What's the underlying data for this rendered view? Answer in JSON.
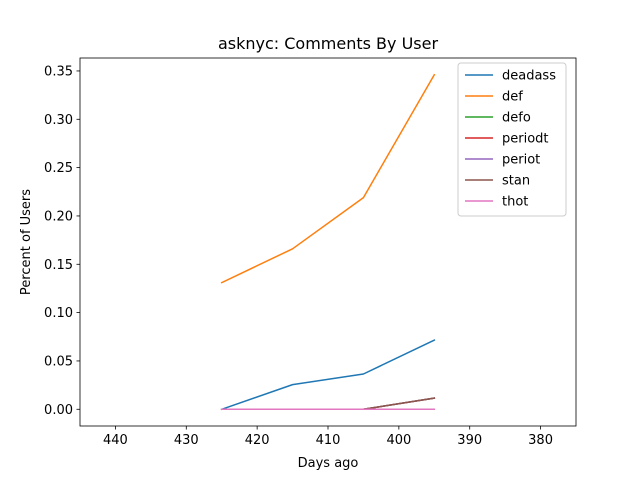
{
  "chart_data": {
    "type": "line",
    "title": "asknyc: Comments By User",
    "xlabel": "Days ago",
    "ylabel": "Percent of Users",
    "x_axis_inverted": true,
    "xlim": [
      445,
      375
    ],
    "ylim": [
      -0.0173,
      0.3634
    ],
    "xticks": [
      440,
      430,
      420,
      410,
      400,
      390,
      380
    ],
    "yticks": [
      0.0,
      0.05,
      0.1,
      0.15,
      0.2,
      0.25,
      0.3,
      0.35
    ],
    "ytick_labels": [
      "0.00",
      "0.05",
      "0.10",
      "0.15",
      "0.20",
      "0.25",
      "0.30",
      "0.35"
    ],
    "grid": false,
    "legend_position": "top-right",
    "x": [
      425,
      415,
      405,
      395
    ],
    "series": [
      {
        "name": "deadass",
        "color": "#1f77b4",
        "values": [
          0.0,
          0.0255,
          0.0365,
          0.0715
        ]
      },
      {
        "name": "def",
        "color": "#ff7f0e",
        "values": [
          0.131,
          0.166,
          0.219,
          0.346
        ]
      },
      {
        "name": "defo",
        "color": "#2ca02c",
        "values": [
          0.0,
          0.0,
          0.0,
          0.0115
        ]
      },
      {
        "name": "periodt",
        "color": "#d62728",
        "values": [
          0.0,
          0.0,
          0.0,
          0.0115
        ]
      },
      {
        "name": "periot",
        "color": "#9467bd",
        "values": [
          0.0,
          0.0,
          0.0,
          0.0115
        ]
      },
      {
        "name": "stan",
        "color": "#8c564b",
        "values": [
          0.0,
          0.0,
          0.0,
          0.0115
        ]
      },
      {
        "name": "thot",
        "color": "#e377c2",
        "values": [
          0.0,
          0.0,
          0.0,
          0.0
        ]
      }
    ]
  }
}
